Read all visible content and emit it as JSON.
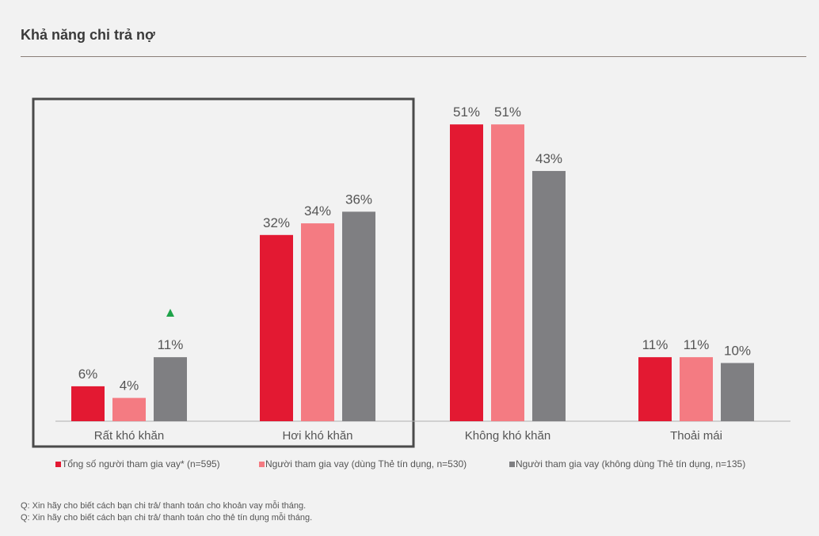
{
  "page": {
    "title": "Khả năng chi trả nợ",
    "notes": [
      "Q: Xin hãy cho biết cách bạn chi trả/ thanh toán cho khoản vay mỗi tháng.",
      "Q: Xin hãy cho biết cách bạn chi trả/ thanh toán cho thẻ tín dụng mỗi tháng."
    ]
  },
  "colors": {
    "series": [
      "#e31932",
      "#f47b82",
      "#7f7f82"
    ],
    "label": "#555555",
    "axis": "#b0b0b0",
    "highlight_box": "#4a4a4a",
    "up_marker": "#1fa34a"
  },
  "chart_data": {
    "type": "bar",
    "title": "Khả năng chi trả nợ",
    "categories": [
      "Rất khó khăn",
      "Hơi khó khăn",
      "Không khó khăn",
      "Thoải mái"
    ],
    "series": [
      {
        "name": "Tổng số người tham gia vay* (n=595)",
        "values": [
          6,
          32,
          51,
          11
        ],
        "labels": [
          "6%",
          "32%",
          "51%",
          "11%"
        ]
      },
      {
        "name": "Người tham gia vay (dùng Thẻ tín dụng, n=530)",
        "values": [
          4,
          34,
          51,
          11
        ],
        "labels": [
          "4%",
          "34%",
          "51%",
          "11%"
        ]
      },
      {
        "name": "Người tham gia vay (không dùng Thẻ tín dụng, n=135)",
        "values": [
          11,
          36,
          43,
          10
        ],
        "labels": [
          "11%",
          "36%",
          "43%",
          "10%"
        ]
      }
    ],
    "ylim": [
      0,
      55
    ],
    "unit": "%",
    "grid": false,
    "legend": "bottom",
    "annotations": {
      "up_marker": {
        "series": 2,
        "category": 0
      },
      "highlight_box_categories": [
        0,
        1
      ]
    }
  }
}
